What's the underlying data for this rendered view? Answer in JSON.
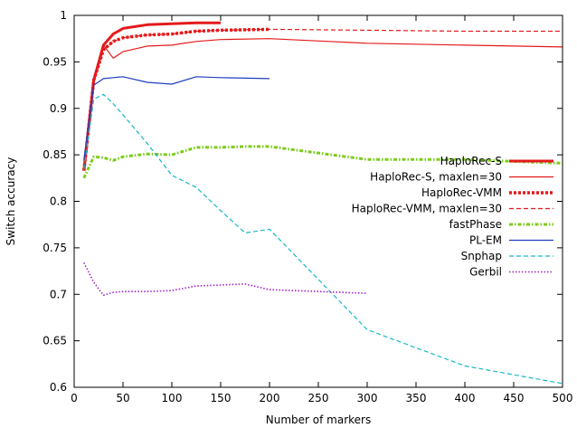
{
  "chart_data": {
    "type": "line",
    "title": "",
    "xlabel": "Number of markers",
    "ylabel": "Switch accuracy",
    "xlim": [
      0,
      500
    ],
    "ylim": [
      0.6,
      1.0
    ],
    "x_ticks": [
      0,
      50,
      100,
      150,
      200,
      250,
      300,
      350,
      400,
      450,
      500
    ],
    "y_ticks": [
      0.6,
      0.65,
      0.7,
      0.75,
      0.8,
      0.85,
      0.9,
      0.95,
      1.0
    ],
    "x_tick_labels": [
      "0",
      "50",
      "100",
      "150",
      "200",
      "250",
      "300",
      "350",
      "400",
      "450",
      "500"
    ],
    "y_tick_labels": [
      "0.6",
      "0.65",
      "0.7",
      "0.75",
      "0.8",
      "0.85",
      "0.9",
      "0.95",
      "1"
    ],
    "grid": false,
    "legend_position": "right",
    "series": [
      {
        "name": "HaploRec-S",
        "color": "#e41a1c",
        "style": "solid-thick",
        "x": [
          10,
          20,
          30,
          40,
          50,
          75,
          100,
          125,
          150
        ],
        "y": [
          0.833,
          0.93,
          0.968,
          0.98,
          0.986,
          0.99,
          0.991,
          0.992,
          0.992
        ]
      },
      {
        "name": "HaploRec-S, maxlen=30",
        "color": "#e41a1c",
        "style": "solid-thin",
        "x": [
          10,
          20,
          30,
          40,
          50,
          75,
          100,
          125,
          150,
          200,
          300,
          400,
          500
        ],
        "y": [
          0.833,
          0.93,
          0.968,
          0.954,
          0.961,
          0.967,
          0.968,
          0.972,
          0.974,
          0.975,
          0.97,
          0.968,
          0.966
        ]
      },
      {
        "name": "HaploRec-VMM",
        "color": "#e41a1c",
        "style": "dashed-thick",
        "x": [
          10,
          20,
          30,
          40,
          50,
          75,
          100,
          125,
          150,
          200
        ],
        "y": [
          0.833,
          0.93,
          0.963,
          0.972,
          0.976,
          0.979,
          0.98,
          0.983,
          0.984,
          0.985
        ]
      },
      {
        "name": "HaploRec-VMM, maxlen=30",
        "color": "#e41a1c",
        "style": "dashed-thin",
        "x": [
          10,
          20,
          30,
          40,
          50,
          75,
          100,
          125,
          150,
          200,
          300,
          400,
          500
        ],
        "y": [
          0.833,
          0.93,
          0.963,
          0.972,
          0.976,
          0.979,
          0.98,
          0.983,
          0.984,
          0.985,
          0.984,
          0.983,
          0.983
        ]
      },
      {
        "name": "fastPhase",
        "color": "#7ccd1a",
        "style": "dashdot-thick",
        "x": [
          10,
          20,
          30,
          40,
          50,
          75,
          100,
          125,
          150,
          175,
          200,
          300,
          400,
          500
        ],
        "y": [
          0.825,
          0.848,
          0.847,
          0.844,
          0.848,
          0.851,
          0.85,
          0.858,
          0.858,
          0.859,
          0.859,
          0.845,
          0.845,
          0.841
        ]
      },
      {
        "name": "PL-EM",
        "color": "#1f3ebf",
        "style": "solid-thin",
        "x": [
          10,
          20,
          30,
          40,
          50,
          75,
          100,
          125,
          150,
          200
        ],
        "y": [
          0.845,
          0.925,
          0.932,
          0.933,
          0.934,
          0.928,
          0.926,
          0.934,
          0.933,
          0.932
        ]
      },
      {
        "name": "Snphap",
        "color": "#16b8c8",
        "style": "dashed-thin",
        "x": [
          10,
          20,
          30,
          40,
          50,
          75,
          100,
          125,
          150,
          175,
          200,
          300,
          400,
          500
        ],
        "y": [
          0.835,
          0.91,
          0.915,
          0.905,
          0.893,
          0.862,
          0.828,
          0.815,
          0.79,
          0.766,
          0.77,
          0.662,
          0.623,
          0.604
        ]
      },
      {
        "name": "Gerbil",
        "color": "#a020c8",
        "style": "dotted-thin",
        "x": [
          10,
          20,
          30,
          40,
          50,
          75,
          100,
          125,
          150,
          175,
          200,
          300
        ],
        "y": [
          0.734,
          0.713,
          0.699,
          0.702,
          0.703,
          0.703,
          0.704,
          0.709,
          0.71,
          0.711,
          0.705,
          0.701
        ]
      }
    ]
  }
}
